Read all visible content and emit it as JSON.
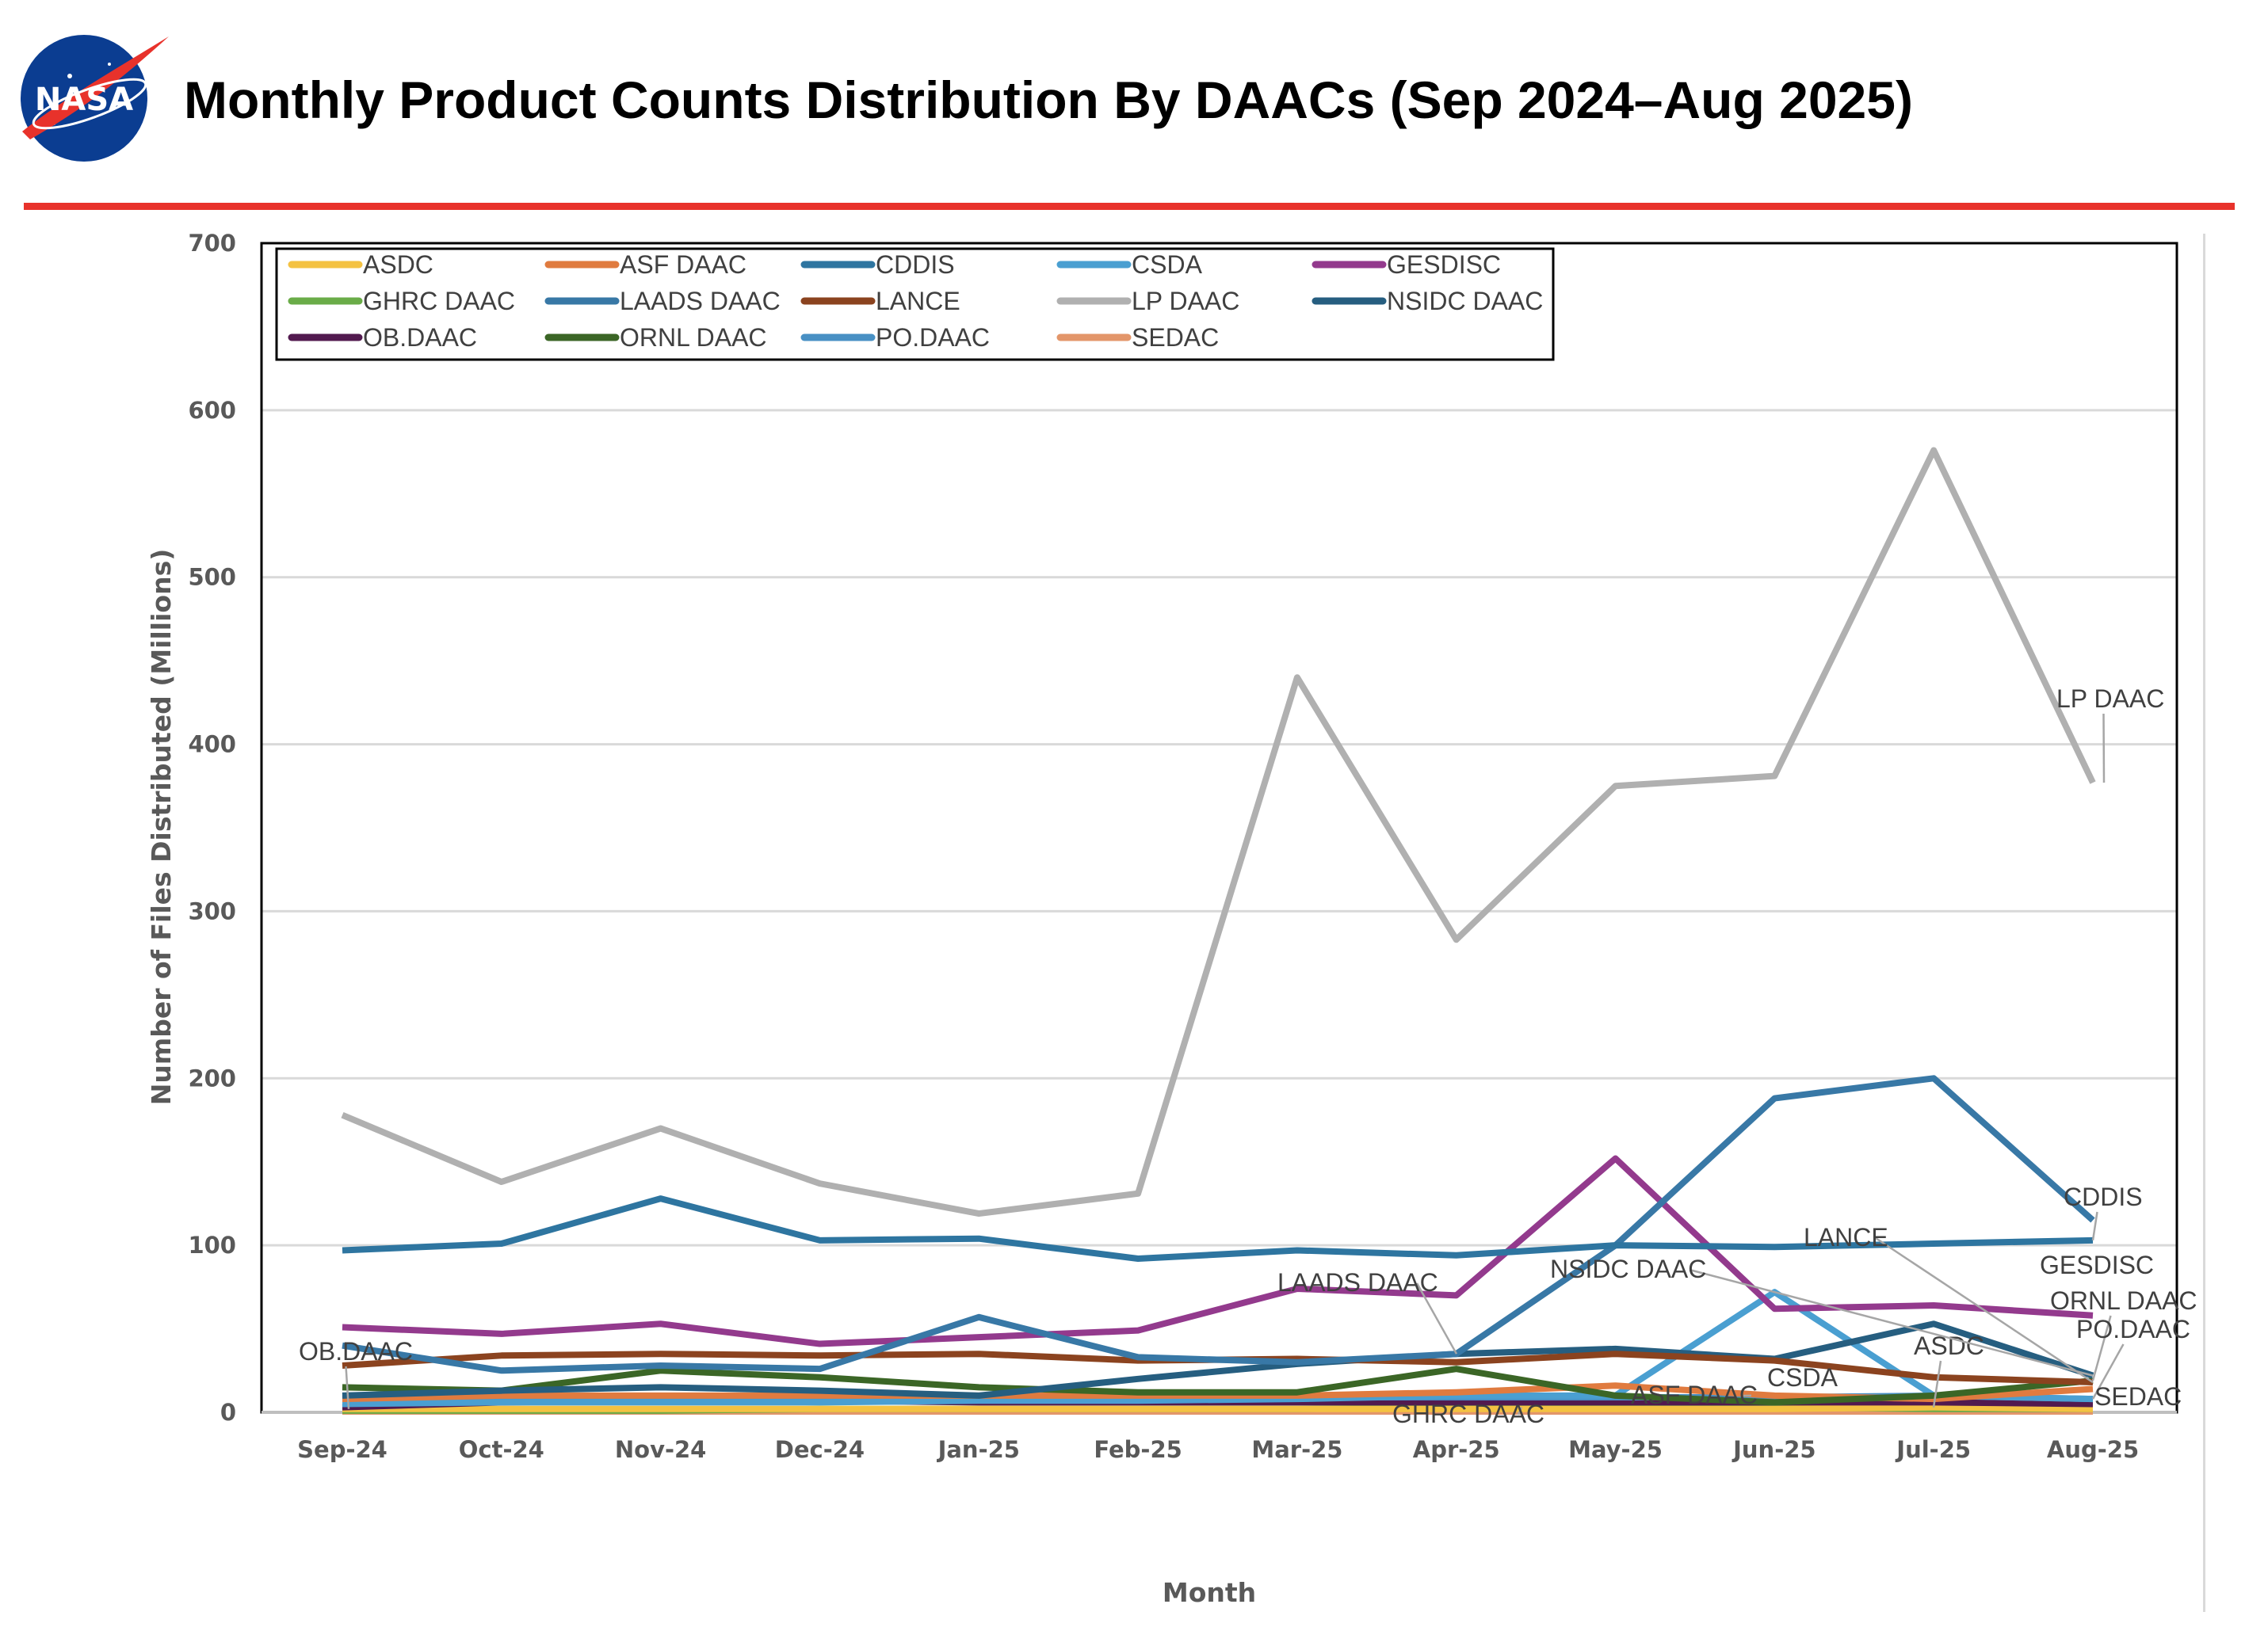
{
  "header": {
    "title": "Monthly Product Counts Distribution By DAACs (Sep 2024–Aug 2025)",
    "logo_text": "NASA",
    "accent_color": "#e8322b"
  },
  "chart_data": {
    "type": "line",
    "title": "",
    "xlabel": "Month",
    "ylabel": "Number of Files Distributed (Millions)",
    "ylim": [
      0,
      700
    ],
    "yticks": [
      0,
      100,
      200,
      300,
      400,
      500,
      600,
      700
    ],
    "grid": true,
    "legend_placement": "top-left",
    "categories": [
      "Sep-24",
      "Oct-24",
      "Nov-24",
      "Dec-24",
      "Jan-25",
      "Feb-25",
      "Mar-25",
      "Apr-25",
      "May-25",
      "Jun-25",
      "Jul-25",
      "Aug-25"
    ],
    "series": [
      {
        "name": "ASDC",
        "color": "#f4c242",
        "values": [
          2,
          2,
          2,
          2,
          2,
          2,
          2,
          2,
          2,
          2,
          3,
          2
        ]
      },
      {
        "name": "ASF DAAC",
        "color": "#e07b3f",
        "values": [
          8,
          10,
          10,
          10,
          10,
          10,
          10,
          12,
          16,
          10,
          8,
          14
        ]
      },
      {
        "name": "CDDIS",
        "color": "#2e75a0",
        "values": [
          97,
          101,
          128,
          103,
          104,
          92,
          97,
          94,
          100,
          99,
          101,
          103
        ]
      },
      {
        "name": "CSDA",
        "color": "#4a9fd1",
        "values": [
          5,
          6,
          6,
          6,
          7,
          7,
          8,
          10,
          10,
          72,
          10,
          8
        ]
      },
      {
        "name": "GESDISC",
        "color": "#933a8d",
        "values": [
          51,
          47,
          53,
          41,
          45,
          49,
          74,
          70,
          152,
          62,
          64,
          58
        ]
      },
      {
        "name": "GHRC DAAC",
        "color": "#6aac48",
        "values": [
          1,
          1,
          1,
          2,
          2,
          2,
          2,
          3,
          3,
          3,
          2,
          2
        ]
      },
      {
        "name": "LAADS DAAC",
        "color": "#3878a6",
        "values": [
          40,
          25,
          28,
          26,
          57,
          33,
          30,
          35,
          100,
          188,
          200,
          115
        ]
      },
      {
        "name": "LANCE",
        "color": "#8b431f",
        "values": [
          28,
          34,
          35,
          34,
          35,
          31,
          32,
          30,
          35,
          31,
          21,
          18
        ]
      },
      {
        "name": "LP DAAC",
        "color": "#b0b0b0",
        "values": [
          178,
          138,
          170,
          137,
          119,
          131,
          440,
          283,
          375,
          381,
          576,
          377
        ]
      },
      {
        "name": "NSIDC DAAC",
        "color": "#265e80",
        "values": [
          10,
          13,
          15,
          13,
          10,
          20,
          29,
          35,
          38,
          32,
          53,
          22
        ]
      },
      {
        "name": "OB.DAAC",
        "color": "#521a4f",
        "values": [
          3,
          6,
          7,
          7,
          6,
          6,
          6,
          6,
          6,
          6,
          6,
          5
        ]
      },
      {
        "name": "ORNL DAAC",
        "color": "#3b6626",
        "values": [
          15,
          13,
          25,
          21,
          15,
          12,
          12,
          26,
          10,
          6,
          10,
          19
        ]
      },
      {
        "name": "PO.DAAC",
        "color": "#4890c4",
        "values": [
          7,
          7,
          8,
          8,
          8,
          8,
          9,
          9,
          9,
          9,
          10,
          8
        ]
      },
      {
        "name": "SEDAC",
        "color": "#e3966a",
        "values": [
          0.5,
          0.5,
          0.5,
          0.5,
          0.5,
          0.5,
          0.5,
          0.5,
          0.5,
          0.5,
          0.5,
          0.5
        ]
      }
    ],
    "data_labels": [
      "LP DAAC",
      "CDDIS",
      "LANCE",
      "GESDISC",
      "ORNL DAAC",
      "PO.DAAC",
      "ASDC",
      "SEDAC",
      "CSDA",
      "NSIDC DAAC",
      "LAADS DAAC",
      "ASF DAAC",
      "GHRC DAAC",
      "OB.DAAC"
    ]
  }
}
